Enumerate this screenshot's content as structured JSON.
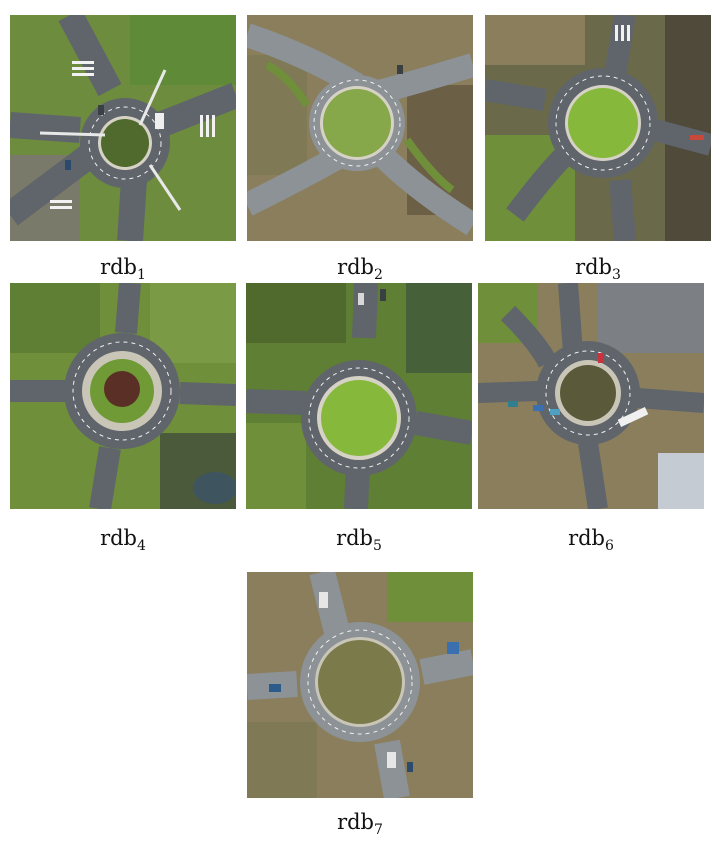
{
  "figure": {
    "panels": [
      {
        "base": "rdb",
        "sub": "1"
      },
      {
        "base": "rdb",
        "sub": "2"
      },
      {
        "base": "rdb",
        "sub": "3"
      },
      {
        "base": "rdb",
        "sub": "4"
      },
      {
        "base": "rdb",
        "sub": "5"
      },
      {
        "base": "rdb",
        "sub": "6"
      },
      {
        "base": "rdb",
        "sub": "7"
      }
    ]
  },
  "colors": {
    "grass": "#6f8f3a",
    "grass_dark": "#4f6a2c",
    "grass_bright": "#86b93b",
    "field_brown": "#8a7e5c",
    "asphalt": "#5f656b",
    "asphalt_light": "#8c9296",
    "curb": "#d6d2c6",
    "marking": "#f2f2f2",
    "island_soil": "#5a2f25"
  }
}
